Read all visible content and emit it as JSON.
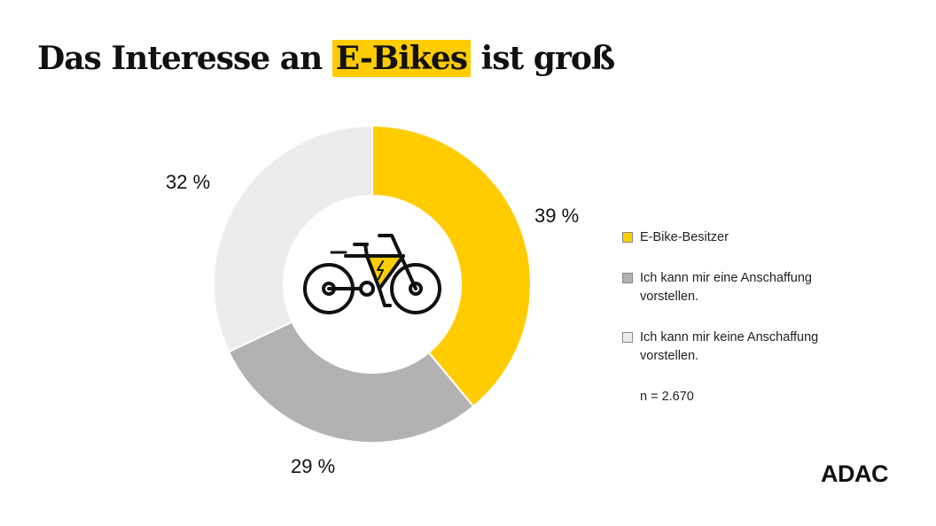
{
  "title": {
    "before": "Das Interesse an ",
    "highlight": "E-Bikes",
    "after": " ist groß"
  },
  "brand": "ADAC",
  "colors": {
    "accent": "#ffcc00",
    "mid_gray": "#b2b2b2",
    "light_gray": "#ececec"
  },
  "center_icon": "e-bike-icon",
  "chart_data": {
    "type": "pie",
    "variant": "donut",
    "title": "Das Interesse an E-Bikes ist groß",
    "unit": "%",
    "slices": [
      {
        "label": "E-Bike-Besitzer",
        "value": 39,
        "display": "39 %",
        "color": "#ffcc00"
      },
      {
        "label": "Ich kann mir eine Anschaffung vorstellen.",
        "value": 29,
        "display": "29 %",
        "color": "#b2b2b2"
      },
      {
        "label": "Ich kann mir keine Anschaffung vorstellen.",
        "value": 32,
        "display": "32 %",
        "color": "#ececec"
      }
    ],
    "start_angle": "12 o'clock, clockwise",
    "legend_position": "right",
    "note": "n = 2.670"
  }
}
